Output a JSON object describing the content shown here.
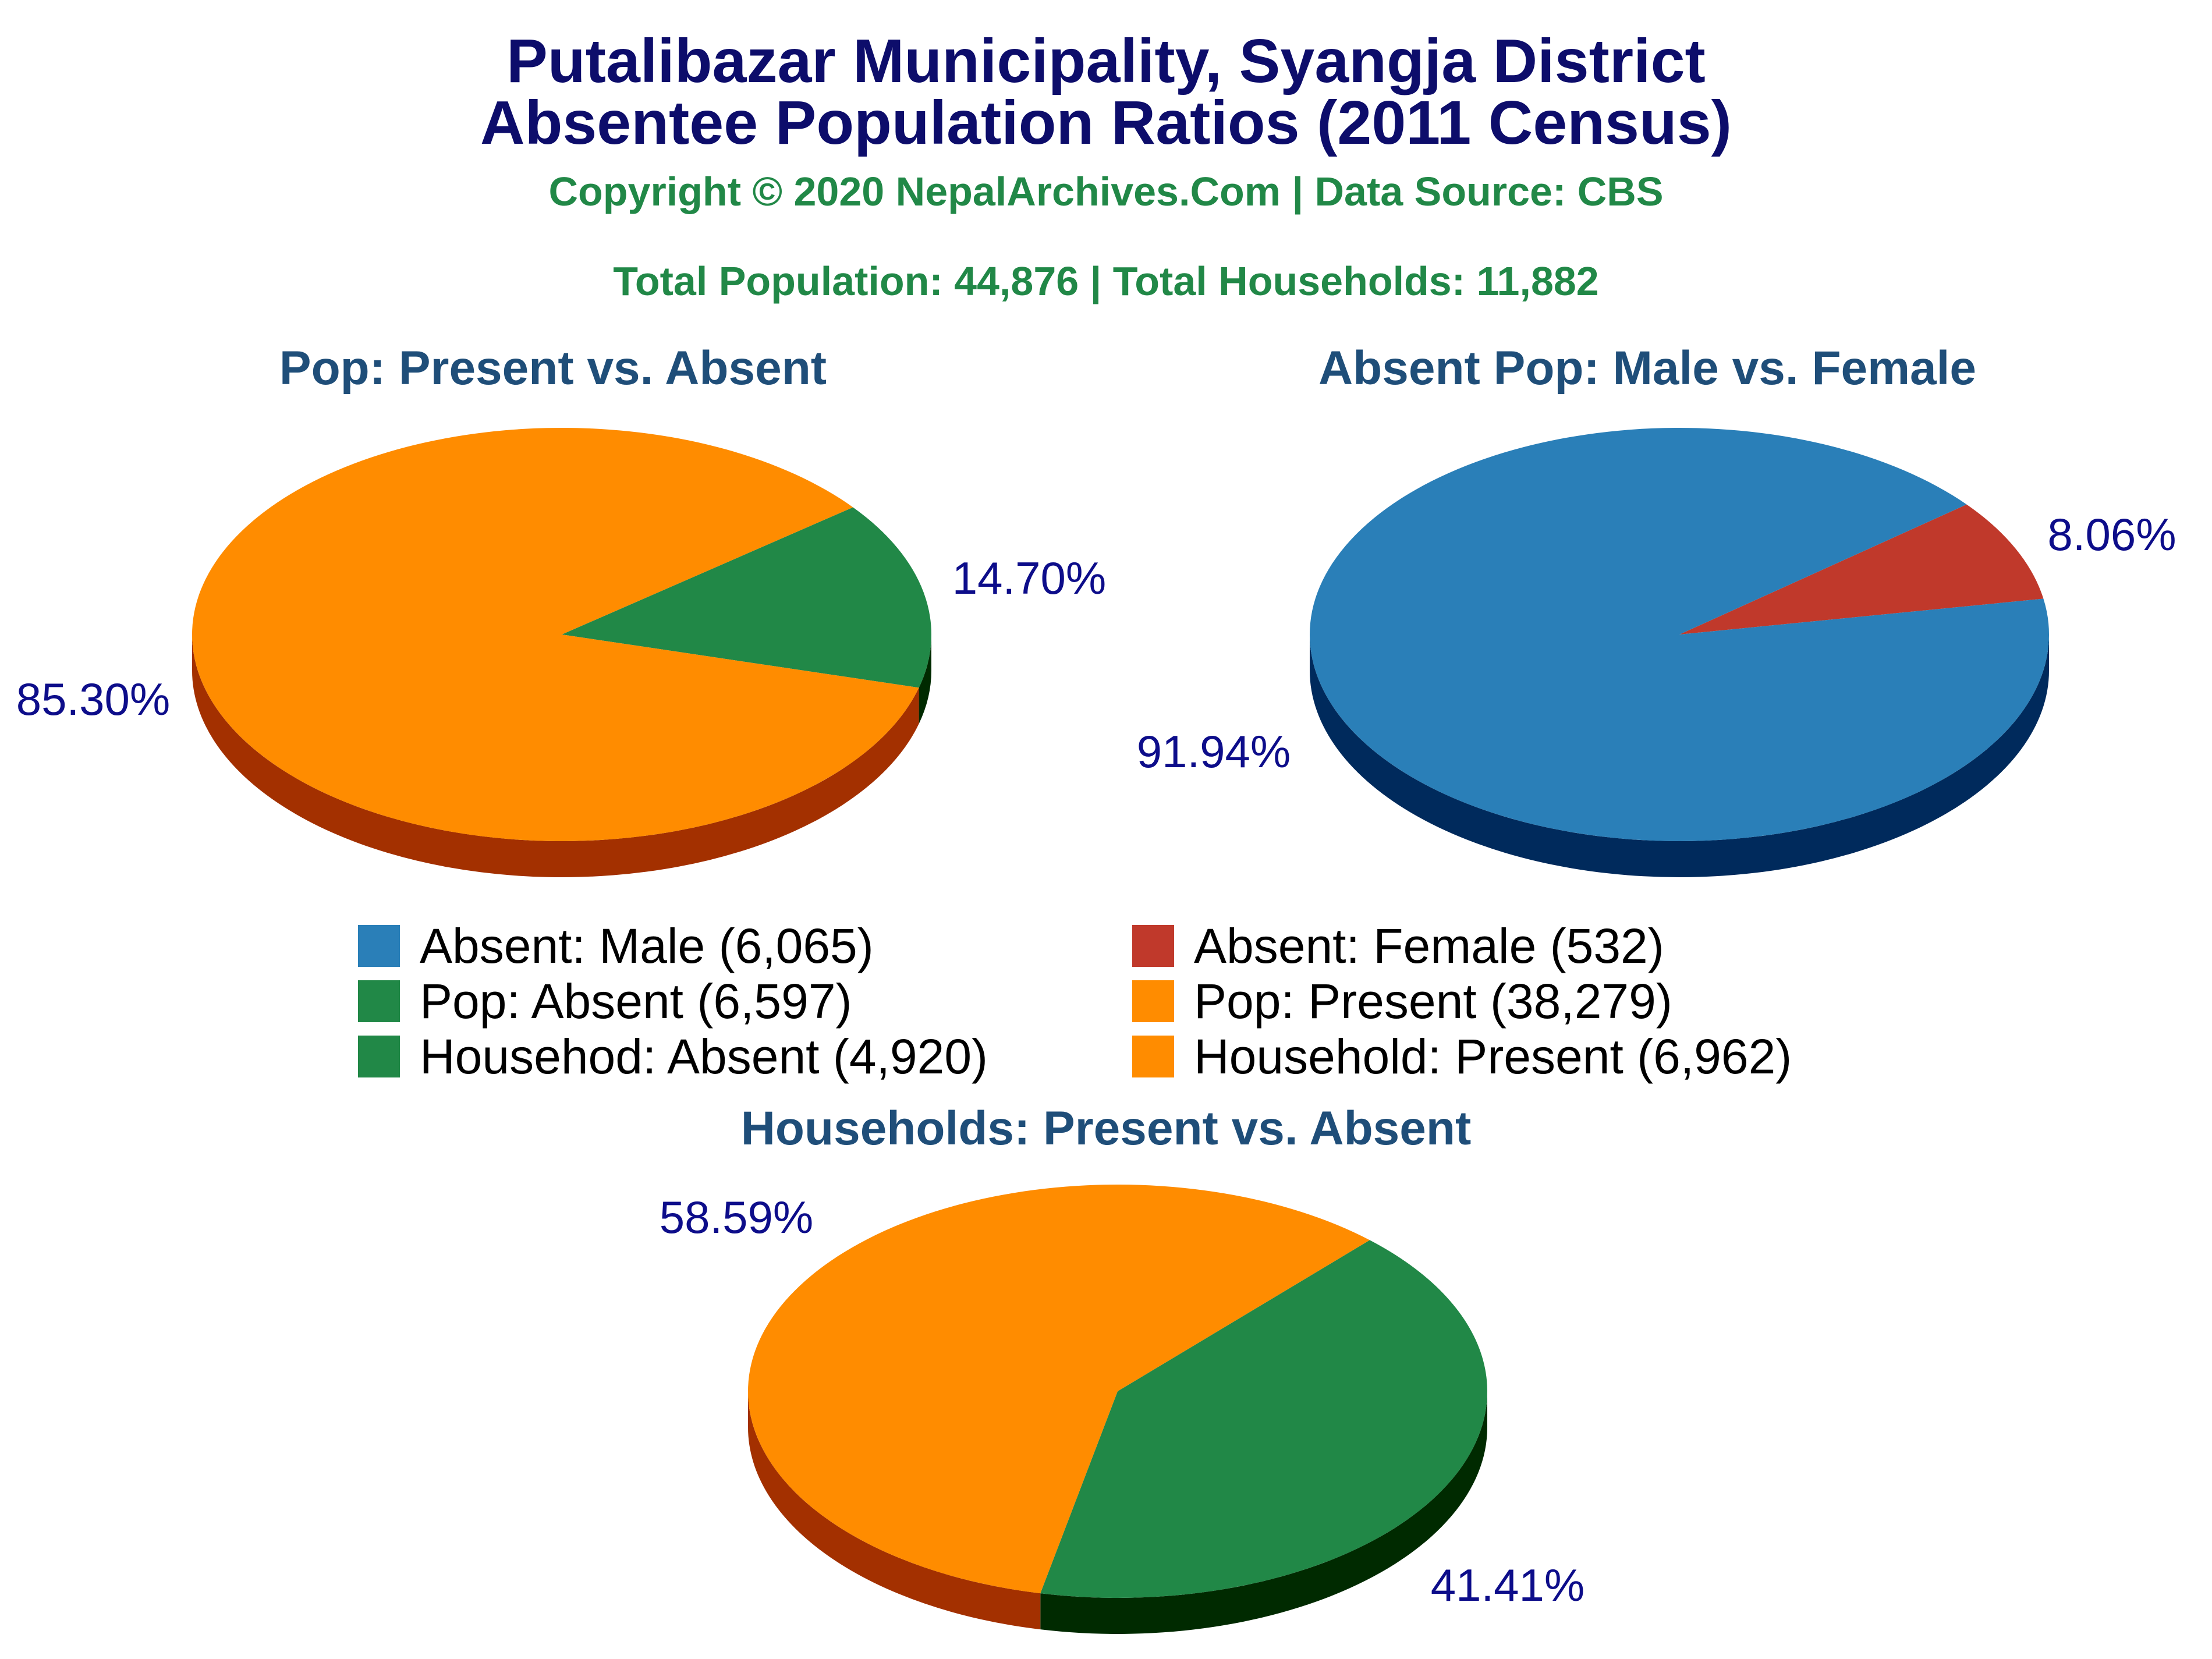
{
  "title": {
    "line1": "Putalibazar Municipality, Syangja District",
    "line2": "Absentee Population Ratios (2011 Census)",
    "copyright": "Copyright © 2020 NepalArchives.Com | Data Source: CBS",
    "totals": "Total Population: 44,876 | Total Households: 11,882"
  },
  "colors": {
    "orange": "#ff8c00",
    "orange_side": "#a33000",
    "green": "#218847",
    "green_side": "#002a00",
    "blue": "#2a7fb8",
    "blue_side": "#002a5c",
    "red": "#c0392b",
    "red_side": "#6b0d06",
    "label": "#0d0d8a"
  },
  "legend": [
    {
      "label": "Absent: Male (6,065)",
      "color": "#2a7fb8"
    },
    {
      "label": "Absent: Female (532)",
      "color": "#c0392b"
    },
    {
      "label": "Pop: Absent (6,597)",
      "color": "#218847"
    },
    {
      "label": "Pop: Present (38,279)",
      "color": "#ff8c00"
    },
    {
      "label": "Househod: Absent (4,920)",
      "color": "#218847"
    },
    {
      "label": "Household: Present (6,962)",
      "color": "#ff8c00"
    }
  ],
  "chart_data": [
    {
      "type": "pie",
      "title": "Pop: Present vs. Absent",
      "slices": [
        {
          "name": "Pop: Absent",
          "value": 6597,
          "percent_label": "14.70%",
          "color": "#218847"
        },
        {
          "name": "Pop: Present",
          "value": 38279,
          "percent_label": "85.30%",
          "color": "#ff8c00"
        }
      ]
    },
    {
      "type": "pie",
      "title": "Absent Pop: Male vs. Female",
      "slices": [
        {
          "name": "Absent: Female",
          "value": 532,
          "percent_label": "8.06%",
          "color": "#c0392b"
        },
        {
          "name": "Absent: Male",
          "value": 6065,
          "percent_label": "91.94%",
          "color": "#2a7fb8"
        }
      ]
    },
    {
      "type": "pie",
      "title": "Households: Present vs. Absent",
      "slices": [
        {
          "name": "Househod: Absent",
          "value": 4920,
          "percent_label": "41.41%",
          "color": "#218847"
        },
        {
          "name": "Household: Present",
          "value": 6962,
          "percent_label": "58.59%",
          "color": "#ff8c00"
        }
      ]
    }
  ]
}
